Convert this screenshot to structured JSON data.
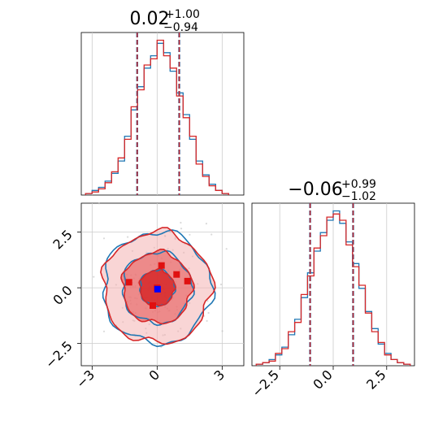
{
  "chart_data": [
    {
      "type": "histogram",
      "panel": "x1-marginal",
      "title": {
        "median": "0.02",
        "plus": "+1.00",
        "minus": "−0.94"
      },
      "xlim": [
        -3.5,
        4.0
      ],
      "quantile_lines": [
        -0.92,
        1.02
      ],
      "series": [
        {
          "name": "",
          "color": "#1f77b4",
          "bin_edges": [
            -3.3,
            -3.0,
            -2.7,
            -2.4,
            -2.1,
            -1.8,
            -1.5,
            -1.2,
            -0.9,
            -0.6,
            -0.3,
            0.0,
            0.3,
            0.6,
            0.9,
            1.2,
            1.5,
            1.8,
            2.1,
            2.4,
            2.7,
            3.0,
            3.3
          ],
          "counts": [
            1,
            3,
            5,
            9,
            14,
            22,
            38,
            55,
            70,
            82,
            90,
            98,
            92,
            80,
            66,
            52,
            36,
            22,
            13,
            7,
            3,
            1
          ]
        },
        {
          "name": "",
          "color": "#d62728",
          "bin_edges": [
            -3.3,
            -3.0,
            -2.7,
            -2.4,
            -2.1,
            -1.8,
            -1.5,
            -1.2,
            -0.9,
            -0.6,
            -0.3,
            0.0,
            0.3,
            0.6,
            0.9,
            1.2,
            1.5,
            1.8,
            2.1,
            2.4,
            2.7,
            3.0,
            3.3
          ],
          "counts": [
            1,
            2,
            4,
            8,
            15,
            24,
            36,
            57,
            68,
            84,
            88,
            100,
            90,
            82,
            64,
            50,
            38,
            20,
            12,
            6,
            3,
            1
          ]
        }
      ]
    },
    {
      "type": "scatter",
      "panel": "joint-contour",
      "xlim": [
        -3.5,
        4.0
      ],
      "ylim": [
        -3.5,
        3.8
      ],
      "x_ticks": [
        {
          "value": -3,
          "label": "−3"
        },
        {
          "value": 0,
          "label": "0"
        },
        {
          "value": 3,
          "label": "3"
        }
      ],
      "y_ticks": [
        {
          "value": -2.5,
          "label": "−2.5"
        },
        {
          "value": 0,
          "label": "0.0"
        },
        {
          "value": 2.5,
          "label": "2.5"
        }
      ],
      "contours": [
        {
          "color": "#1f77b4",
          "levels": [
            0.8,
            1.6,
            2.5
          ]
        },
        {
          "color": "#d62728",
          "levels": [
            0.8,
            1.6,
            2.5
          ]
        }
      ],
      "red_points": [
        {
          "x": 0.2,
          "y": 1.0
        },
        {
          "x": 0.9,
          "y": 0.6
        },
        {
          "x": -1.3,
          "y": 0.25
        },
        {
          "x": 1.4,
          "y": 0.3
        },
        {
          "x": -0.2,
          "y": -0.8
        },
        {
          "x": 0.0,
          "y": 0.0
        }
      ],
      "truth_point": {
        "x": 0.02,
        "y": -0.06,
        "color": "#0000ff"
      }
    },
    {
      "type": "histogram",
      "panel": "x2-marginal",
      "title": {
        "median": "−0.06",
        "plus": "+0.99",
        "minus": "−1.02"
      },
      "xlim": [
        -3.8,
        3.8
      ],
      "x_ticks": [
        {
          "value": -2.5,
          "label": "−2.5"
        },
        {
          "value": 0,
          "label": "0.0"
        },
        {
          "value": 2.5,
          "label": "2.5"
        }
      ],
      "quantile_lines": [
        -1.08,
        0.93
      ],
      "series": [
        {
          "name": "",
          "color": "#1f77b4",
          "bin_edges": [
            -3.6,
            -3.3,
            -3.0,
            -2.7,
            -2.4,
            -2.1,
            -1.8,
            -1.5,
            -1.2,
            -0.9,
            -0.6,
            -0.3,
            0.0,
            0.3,
            0.6,
            0.9,
            1.2,
            1.5,
            1.8,
            2.1,
            2.4,
            2.7,
            3.0,
            3.3,
            3.6
          ],
          "counts": [
            1,
            2,
            4,
            7,
            12,
            20,
            30,
            44,
            60,
            74,
            86,
            94,
            100,
            92,
            80,
            66,
            50,
            35,
            24,
            14,
            8,
            4,
            2,
            1
          ]
        },
        {
          "name": "",
          "color": "#d62728",
          "bin_edges": [
            -3.6,
            -3.3,
            -3.0,
            -2.7,
            -2.4,
            -2.1,
            -1.8,
            -1.5,
            -1.2,
            -0.9,
            -0.6,
            -0.3,
            0.0,
            0.3,
            0.6,
            0.9,
            1.2,
            1.5,
            1.8,
            2.1,
            2.4,
            2.7,
            3.0,
            3.3,
            3.6
          ],
          "counts": [
            1,
            2,
            3,
            8,
            11,
            22,
            28,
            46,
            58,
            76,
            84,
            96,
            98,
            94,
            78,
            64,
            52,
            34,
            22,
            15,
            7,
            4,
            2,
            1
          ]
        }
      ]
    }
  ]
}
